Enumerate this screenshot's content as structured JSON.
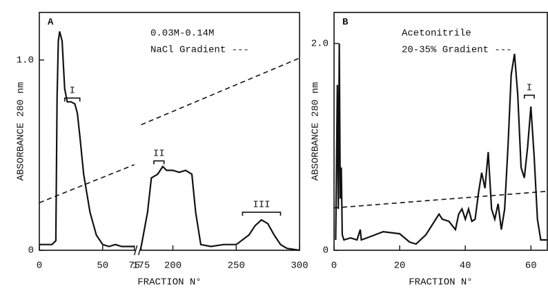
{
  "chart_data": [
    {
      "type": "line",
      "title": "A",
      "notes": [
        "0.03M-0.14M",
        "NaCl Gradient ---"
      ],
      "xlabel": "FRACTION N°",
      "ylabel": "ABSORBANCE 280 nm",
      "xlim": [
        0,
        300
      ],
      "x_break": [
        75,
        175
      ],
      "xticks": [
        0,
        50,
        75,
        175,
        200,
        250,
        300
      ],
      "ylim": [
        0,
        1.25
      ],
      "yticks": [
        0,
        {
          "value": 1,
          "label": "1.0"
        }
      ],
      "series": [
        {
          "name": "Absorbance",
          "color": "#111111",
          "style": "solid",
          "x": [
            0,
            10,
            13,
            14,
            15,
            16,
            18,
            20,
            22,
            25,
            28,
            30,
            32,
            35,
            40,
            45,
            50,
            55,
            60,
            65,
            70,
            75,
            175,
            180,
            183,
            188,
            192,
            195,
            200,
            205,
            210,
            215,
            218,
            222,
            230,
            240,
            250,
            260,
            265,
            270,
            275,
            280,
            285,
            290,
            300
          ],
          "values": [
            0.03,
            0.03,
            0.05,
            0.8,
            1.1,
            1.15,
            1.1,
            0.85,
            0.78,
            0.78,
            0.77,
            0.72,
            0.6,
            0.4,
            0.2,
            0.08,
            0.03,
            0.02,
            0.03,
            0.02,
            0.02,
            0.02,
            0.02,
            0.2,
            0.38,
            0.4,
            0.44,
            0.42,
            0.42,
            0.41,
            0.42,
            0.4,
            0.2,
            0.03,
            0.02,
            0.03,
            0.03,
            0.08,
            0.13,
            0.16,
            0.14,
            0.08,
            0.03,
            0.01,
            0
          ]
        },
        {
          "name": "NaCl Gradient",
          "color": "#111111",
          "style": "dashed",
          "x": [
            0,
            75,
            175,
            300
          ],
          "values": [
            0.25,
            0.45,
            0.66,
            1.01
          ]
        }
      ],
      "annotations": [
        {
          "label": "I",
          "x_range": [
            20,
            32
          ],
          "y": 0.8
        },
        {
          "label": "II",
          "x_range": [
            185,
            193
          ],
          "y": 0.47
        },
        {
          "label": "III",
          "x_range": [
            255,
            285
          ],
          "y": 0.2
        }
      ]
    },
    {
      "type": "line",
      "title": "B",
      "notes": [
        "Acetonitrile",
        "20-35% Gradient ---"
      ],
      "xlabel": "FRACTION N°",
      "ylabel": "ABSORBANCE 280 nm",
      "xlim": [
        0,
        65
      ],
      "xticks": [
        0,
        20,
        40,
        60
      ],
      "ylim": [
        0,
        2.3
      ],
      "yticks": [
        0,
        {
          "value": 2,
          "label": "2.0"
        }
      ],
      "series": [
        {
          "name": "Absorbance",
          "color": "#111111",
          "style": "solid",
          "x": [
            0.5,
            1,
            1.3,
            1.6,
            1.9,
            2.2,
            2.5,
            3,
            5,
            7,
            8,
            8.3,
            10,
            15,
            20,
            23,
            25,
            28,
            30,
            32,
            33,
            35,
            37,
            38,
            39,
            40,
            41,
            42,
            43,
            44,
            45,
            46,
            47,
            48,
            49,
            50,
            51,
            52,
            53,
            54,
            55,
            56,
            57,
            58,
            59,
            60,
            61,
            62,
            63,
            65
          ],
          "values": [
            0.1,
            1.6,
            0.4,
            2.0,
            0.5,
            0.8,
            0.15,
            0.1,
            0.12,
            0.1,
            0.2,
            0.1,
            0.12,
            0.18,
            0.16,
            0.08,
            0.06,
            0.15,
            0.25,
            0.35,
            0.3,
            0.28,
            0.2,
            0.35,
            0.4,
            0.3,
            0.4,
            0.28,
            0.3,
            0.55,
            0.75,
            0.6,
            0.95,
            0.4,
            0.3,
            0.45,
            0.2,
            0.4,
            1.0,
            1.7,
            1.9,
            1.5,
            0.8,
            0.7,
            1.0,
            1.39,
            0.9,
            0.3,
            0.1,
            0.1
          ]
        },
        {
          "name": "Acetonitrile Gradient",
          "color": "#111111",
          "style": "dashed",
          "x": [
            0,
            65
          ],
          "values": [
            0.41,
            0.57
          ]
        }
      ],
      "annotations": [
        {
          "label": "I",
          "x_range": [
            58,
            61
          ],
          "y": 1.5
        }
      ]
    }
  ]
}
